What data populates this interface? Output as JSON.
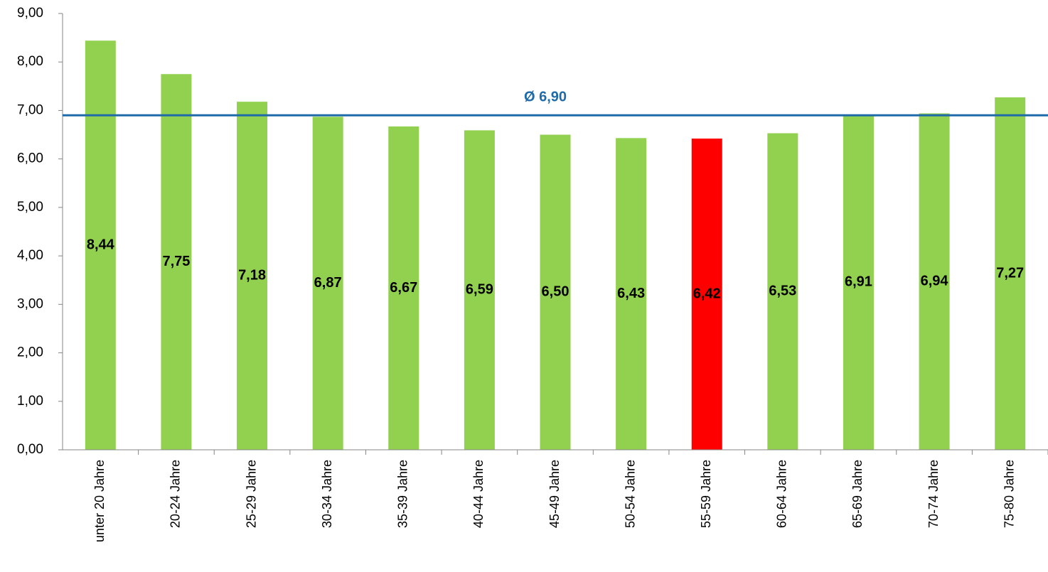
{
  "chart_data": {
    "type": "bar",
    "categories": [
      "unter 20 Jahre",
      "20-24 Jahre",
      "25-29 Jahre",
      "30-34 Jahre",
      "35-39 Jahre",
      "40-44 Jahre",
      "45-49 Jahre",
      "50-54 Jahre",
      "55-59 Jahre",
      "60-64 Jahre",
      "65-69 Jahre",
      "70-74 Jahre",
      "75-80 Jahre"
    ],
    "values": [
      8.44,
      7.75,
      7.18,
      6.87,
      6.67,
      6.59,
      6.5,
      6.43,
      6.42,
      6.53,
      6.91,
      6.94,
      7.27
    ],
    "value_labels": [
      "8,44",
      "7,75",
      "7,18",
      "6,87",
      "6,67",
      "6,59",
      "6,50",
      "6,43",
      "6,42",
      "6,53",
      "6,91",
      "6,94",
      "7,27"
    ],
    "colors": [
      "#92d050",
      "#92d050",
      "#92d050",
      "#92d050",
      "#92d050",
      "#92d050",
      "#92d050",
      "#92d050",
      "#ff0000",
      "#92d050",
      "#92d050",
      "#92d050",
      "#92d050"
    ],
    "ylim": [
      0,
      9
    ],
    "yticks": [
      {
        "value": 0,
        "label": "0,00"
      },
      {
        "value": 1,
        "label": "1,00"
      },
      {
        "value": 2,
        "label": "2,00"
      },
      {
        "value": 3,
        "label": "3,00"
      },
      {
        "value": 4,
        "label": "4,00"
      },
      {
        "value": 5,
        "label": "5,00"
      },
      {
        "value": 6,
        "label": "6,00"
      },
      {
        "value": 7,
        "label": "7,00"
      },
      {
        "value": 8,
        "label": "8,00"
      },
      {
        "value": 9,
        "label": "9,00"
      }
    ],
    "average": {
      "value": 6.9,
      "label": "Ø 6,90",
      "color": "#1f6aa8"
    },
    "grid": false
  }
}
